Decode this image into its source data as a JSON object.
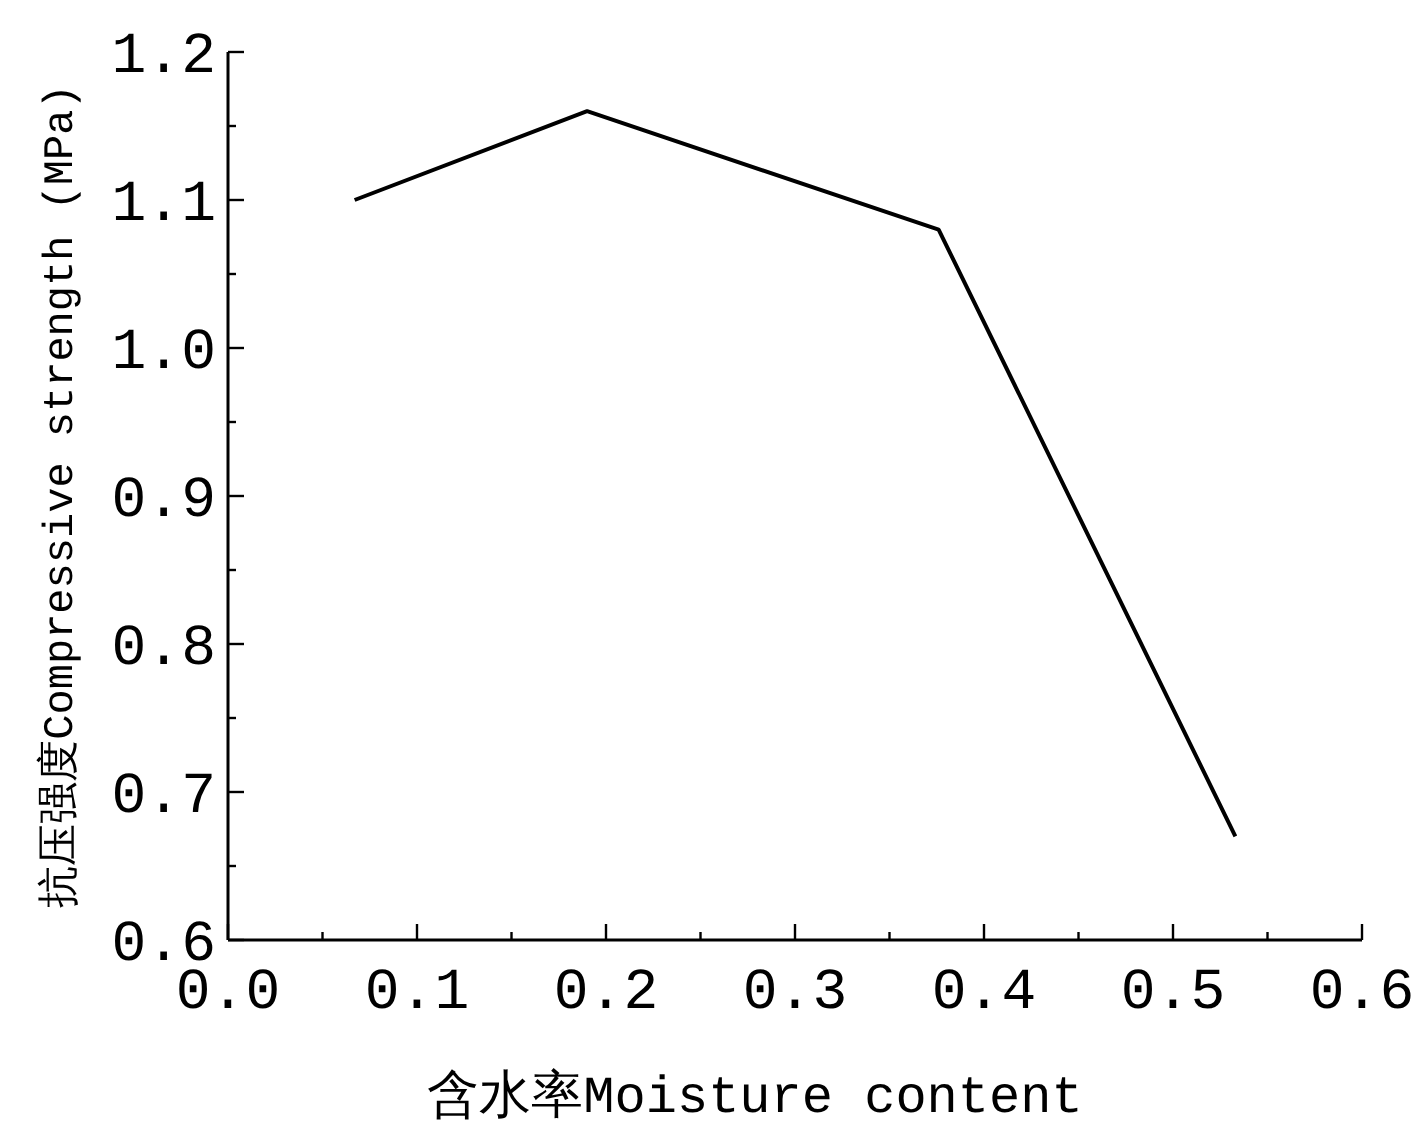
{
  "chart_data": {
    "type": "line",
    "xlabel": "含水率Moisture content",
    "ylabel": "抗压强度Compressive strength (MPa)",
    "x": [
      0.067,
      0.19,
      0.376,
      0.533
    ],
    "series": [
      {
        "color": "#000000",
        "values": [
          1.1,
          1.16,
          1.08,
          0.67
        ]
      }
    ],
    "xlim": [
      0.0,
      0.6
    ],
    "ylim": [
      0.6,
      1.2
    ],
    "xticks": [
      {
        "value": 0.0,
        "label": "0.0"
      },
      {
        "value": 0.05,
        "label": null
      },
      {
        "value": 0.1,
        "label": "0.1"
      },
      {
        "value": 0.15,
        "label": null
      },
      {
        "value": 0.2,
        "label": "0.2"
      },
      {
        "value": 0.25,
        "label": null
      },
      {
        "value": 0.3,
        "label": "0.3"
      },
      {
        "value": 0.35,
        "label": null
      },
      {
        "value": 0.4,
        "label": "0.4"
      },
      {
        "value": 0.45,
        "label": null
      },
      {
        "value": 0.5,
        "label": "0.5"
      },
      {
        "value": 0.55,
        "label": null
      },
      {
        "value": 0.6,
        "label": "0.6"
      }
    ],
    "yticks": [
      {
        "value": 0.6,
        "label": "0.6"
      },
      {
        "value": 0.65,
        "label": null
      },
      {
        "value": 0.7,
        "label": "0.7"
      },
      {
        "value": 0.75,
        "label": null
      },
      {
        "value": 0.8,
        "label": "0.8"
      },
      {
        "value": 0.85,
        "label": null
      },
      {
        "value": 0.9,
        "label": "0.9"
      },
      {
        "value": 0.95,
        "label": null
      },
      {
        "value": 1.0,
        "label": "1.0"
      },
      {
        "value": 1.05,
        "label": null
      },
      {
        "value": 1.1,
        "label": "1.1"
      },
      {
        "value": 1.15,
        "label": null
      },
      {
        "value": 1.2,
        "label": "1.2"
      }
    ],
    "grid": false,
    "marker": "none",
    "line_style": "solid"
  }
}
